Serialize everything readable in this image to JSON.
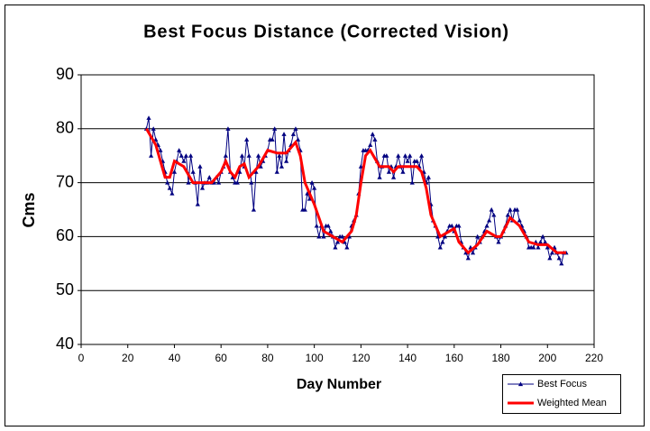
{
  "chart_data": {
    "type": "line",
    "title": "Best Focus Distance (Corrected Vision)",
    "x_label": "Day Number",
    "y_label": "Cms",
    "xlim": [
      0,
      220
    ],
    "xticks": [
      0,
      20,
      40,
      60,
      80,
      100,
      120,
      140,
      160,
      180,
      200,
      220
    ],
    "ylim": [
      40,
      90
    ],
    "yticks": [
      40,
      50,
      60,
      70,
      80,
      90
    ],
    "grid": true,
    "legend": "bottom-right",
    "series": [
      {
        "name": "Best Focus",
        "color": "#000080",
        "marker": "triangle",
        "x": [
          28,
          29,
          30,
          31,
          32,
          33,
          34,
          35,
          36,
          37,
          38,
          39,
          40,
          41,
          42,
          43,
          44,
          45,
          46,
          47,
          48,
          49,
          50,
          51,
          52,
          53,
          54,
          55,
          56,
          57,
          58,
          59,
          60,
          61,
          62,
          63,
          64,
          65,
          66,
          67,
          68,
          69,
          70,
          71,
          72,
          73,
          74,
          75,
          76,
          77,
          78,
          79,
          80,
          81,
          82,
          83,
          84,
          85,
          86,
          87,
          88,
          89,
          90,
          91,
          92,
          93,
          94,
          95,
          96,
          97,
          98,
          99,
          100,
          101,
          102,
          103,
          104,
          105,
          106,
          107,
          108,
          109,
          110,
          111,
          112,
          113,
          114,
          115,
          116,
          117,
          118,
          119,
          120,
          121,
          122,
          123,
          124,
          125,
          126,
          127,
          128,
          129,
          130,
          131,
          132,
          133,
          134,
          135,
          136,
          137,
          138,
          139,
          140,
          141,
          142,
          143,
          144,
          145,
          146,
          147,
          148,
          149,
          150,
          151,
          152,
          153,
          154,
          155,
          156,
          157,
          158,
          159,
          160,
          161,
          162,
          163,
          164,
          165,
          166,
          167,
          168,
          169,
          170,
          171,
          172,
          173,
          174,
          175,
          176,
          177,
          178,
          179,
          180,
          181,
          182,
          183,
          184,
          185,
          186,
          187,
          188,
          189,
          190,
          191,
          192,
          193,
          194,
          195,
          196,
          197,
          198,
          199,
          200,
          201,
          202,
          203,
          204,
          205,
          206,
          207,
          208
        ],
        "values": [
          80,
          82,
          75,
          80,
          78,
          77,
          76,
          74,
          72,
          70,
          69,
          68,
          72,
          74,
          76,
          75,
          74,
          75,
          70,
          75,
          72,
          70,
          66,
          73,
          69,
          70,
          70,
          71,
          70,
          70,
          71,
          70,
          72,
          73,
          75,
          80,
          72,
          71,
          70,
          70,
          72,
          75,
          73,
          78,
          75,
          70,
          65,
          72,
          75,
          73,
          74,
          75,
          76,
          78,
          78,
          80,
          72,
          75,
          73,
          79,
          74,
          76,
          77,
          79,
          80,
          78,
          76,
          65,
          65,
          68,
          67,
          70,
          69,
          62,
          60,
          62,
          60,
          62,
          62,
          61,
          60,
          58,
          59,
          60,
          60,
          59,
          58,
          60,
          62,
          63,
          64,
          68,
          73,
          76,
          76,
          76,
          77,
          79,
          78,
          74,
          71,
          73,
          75,
          75,
          72,
          73,
          71,
          73,
          75,
          73,
          72,
          75,
          74,
          75,
          70,
          74,
          74,
          73,
          75,
          72,
          70,
          71,
          66,
          63,
          62,
          60,
          58,
          59,
          60,
          61,
          62,
          62,
          61,
          62,
          62,
          59,
          58,
          57,
          56,
          58,
          57,
          58,
          60,
          59,
          60,
          61,
          62,
          63,
          65,
          64,
          60,
          59,
          60,
          61,
          62,
          64,
          65,
          63,
          65,
          65,
          63,
          62,
          61,
          60,
          58,
          58,
          58,
          59,
          58,
          59,
          60,
          59,
          58,
          56,
          57,
          58,
          57,
          56,
          55,
          57,
          57
        ]
      },
      {
        "name": "Weighted Mean",
        "color": "#ff0000",
        "x": [
          28,
          32,
          36,
          38,
          40,
          44,
          48,
          52,
          56,
          60,
          62,
          64,
          66,
          68,
          70,
          72,
          76,
          80,
          84,
          88,
          92,
          94,
          96,
          100,
          104,
          108,
          112,
          116,
          118,
          120,
          122,
          124,
          128,
          132,
          134,
          136,
          140,
          144,
          146,
          148,
          150,
          154,
          158,
          160,
          162,
          166,
          170,
          174,
          178,
          180,
          184,
          188,
          192,
          196,
          200,
          204,
          208
        ],
        "values": [
          80,
          77,
          71,
          71,
          74,
          73,
          70,
          70,
          70,
          72,
          74,
          72,
          71,
          73,
          73.5,
          71,
          73,
          76,
          75.5,
          75.5,
          77.5,
          75,
          70,
          66,
          61,
          60,
          59,
          61,
          64,
          70,
          75,
          76,
          73,
          73,
          72,
          73,
          73,
          73,
          72,
          69,
          64,
          60,
          61,
          61.5,
          59,
          57,
          58.5,
          61,
          60,
          60,
          63.5,
          62,
          59,
          58.5,
          58.5,
          57,
          57
        ]
      }
    ]
  }
}
